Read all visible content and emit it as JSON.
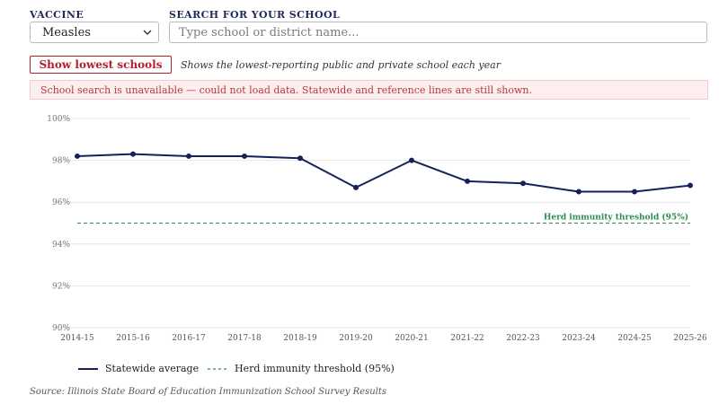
{
  "controls": {
    "vaccine_label": "VACCINE",
    "vaccine_value": "Measles",
    "search_label": "SEARCH FOR YOUR SCHOOL",
    "search_placeholder": "Type school or district name...",
    "search_value": "",
    "lowest_button": "Show lowest schools",
    "lowest_note": "Shows the lowest-reporting public and private school each year"
  },
  "error_message": "School search is unavailable — could not load data. Statewide and reference lines are still shown.",
  "colors": {
    "series": "#16215a",
    "threshold": "#2f8a52",
    "button_accent": "#b4202a",
    "grid": "#e6e6e6"
  },
  "chart_data": {
    "type": "line",
    "x": [
      "2014-15",
      "2015-16",
      "2016-17",
      "2017-18",
      "2018-19",
      "2019-20",
      "2020-21",
      "2021-22",
      "2022-23",
      "2023-24",
      "2024-25",
      "2025-26"
    ],
    "series": [
      {
        "name": "Statewide average",
        "values": [
          98.2,
          98.3,
          98.2,
          98.2,
          98.1,
          96.7,
          98.0,
          97.0,
          96.9,
          96.5,
          96.5,
          96.8
        ]
      }
    ],
    "reference_line": {
      "name": "Herd immunity threshold (95%)",
      "value": 95
    },
    "ylim": [
      90,
      100
    ],
    "yticks": [
      90,
      92,
      94,
      96,
      98,
      100
    ],
    "ytick_labels": [
      "90%",
      "92%",
      "94%",
      "96%",
      "98%",
      "100%"
    ],
    "grid": true,
    "legend_position": "bottom-left"
  },
  "legend": {
    "series_label": "Statewide average",
    "threshold_label": "Herd immunity threshold (95%)"
  },
  "source": "Source: Illinois State Board of Education Immunization School Survey Results"
}
